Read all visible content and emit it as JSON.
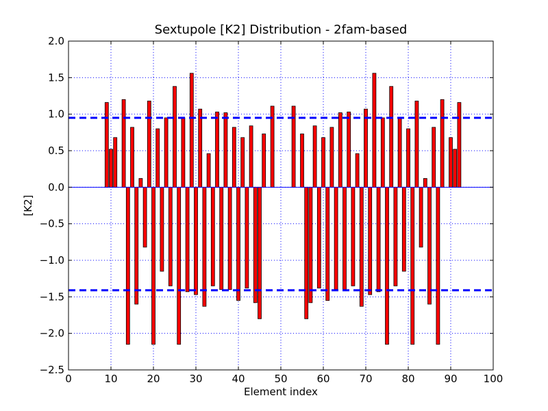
{
  "chart_data": {
    "type": "bar",
    "title": "Sextupole [K2] Distribution - 2fam-based",
    "xlabel": "Element index",
    "ylabel": "[K2]",
    "xlim": [
      0,
      100
    ],
    "ylim": [
      -2.5,
      2.0
    ],
    "xticks": [
      0,
      10,
      20,
      30,
      40,
      50,
      60,
      70,
      80,
      90,
      100
    ],
    "xtick_labels": [
      "0",
      "10",
      "20",
      "30",
      "40",
      "50",
      "60",
      "70",
      "80",
      "90",
      "100"
    ],
    "yticks": [
      2.0,
      1.5,
      1.0,
      0.5,
      0.0,
      -0.5,
      -1.0,
      -1.5,
      -2.0,
      -2.5
    ],
    "ytick_labels": [
      "2.0",
      "1.5",
      "1.0",
      "0.5",
      "0.0",
      "−0.5",
      "−1.0",
      "−1.5",
      "−2.0",
      "−2.5"
    ],
    "grid": true,
    "bar_width": 0.8,
    "bar_color": "#ff0000",
    "bar_edge_color": "#000000",
    "zero_line_color": "#0000ff",
    "reference_lines": [
      {
        "y": 0.95,
        "color": "#0000ff",
        "style": "dashed"
      },
      {
        "y": -1.41,
        "color": "#0000ff",
        "style": "dashed"
      }
    ],
    "bars": [
      {
        "x": 9,
        "value": 1.16
      },
      {
        "x": 10,
        "value": 0.52
      },
      {
        "x": 11,
        "value": 0.68
      },
      {
        "x": 13,
        "value": 1.2
      },
      {
        "x": 14,
        "value": -2.15
      },
      {
        "x": 15,
        "value": 0.82
      },
      {
        "x": 16,
        "value": -1.6
      },
      {
        "x": 17,
        "value": 0.12
      },
      {
        "x": 18,
        "value": -0.82
      },
      {
        "x": 19,
        "value": 1.18
      },
      {
        "x": 20,
        "value": -2.15
      },
      {
        "x": 21,
        "value": 0.8
      },
      {
        "x": 22,
        "value": -1.15
      },
      {
        "x": 23,
        "value": 0.95
      },
      {
        "x": 24,
        "value": -1.35
      },
      {
        "x": 25,
        "value": 1.38
      },
      {
        "x": 26,
        "value": -2.15
      },
      {
        "x": 27,
        "value": 0.95
      },
      {
        "x": 28,
        "value": -1.43
      },
      {
        "x": 29,
        "value": 1.56
      },
      {
        "x": 30,
        "value": -1.47
      },
      {
        "x": 31,
        "value": 1.07
      },
      {
        "x": 32,
        "value": -1.63
      },
      {
        "x": 33,
        "value": 0.46
      },
      {
        "x": 34,
        "value": -1.35
      },
      {
        "x": 35,
        "value": 1.03
      },
      {
        "x": 36,
        "value": -1.4
      },
      {
        "x": 37,
        "value": 1.02
      },
      {
        "x": 38,
        "value": -1.4
      },
      {
        "x": 39,
        "value": 0.82
      },
      {
        "x": 40,
        "value": -1.55
      },
      {
        "x": 41,
        "value": 0.68
      },
      {
        "x": 42,
        "value": -1.38
      },
      {
        "x": 43,
        "value": 0.84
      },
      {
        "x": 44,
        "value": -1.58
      },
      {
        "x": 45,
        "value": -1.8
      },
      {
        "x": 46,
        "value": 0.73
      },
      {
        "x": 48,
        "value": 1.11
      },
      {
        "x": 53,
        "value": 1.11
      },
      {
        "x": 55,
        "value": 0.73
      },
      {
        "x": 56,
        "value": -1.8
      },
      {
        "x": 57,
        "value": -1.58
      },
      {
        "x": 58,
        "value": 0.84
      },
      {
        "x": 59,
        "value": -1.38
      },
      {
        "x": 60,
        "value": 0.68
      },
      {
        "x": 61,
        "value": -1.55
      },
      {
        "x": 62,
        "value": 0.82
      },
      {
        "x": 63,
        "value": -1.4
      },
      {
        "x": 64,
        "value": 1.02
      },
      {
        "x": 65,
        "value": -1.4
      },
      {
        "x": 66,
        "value": 1.03
      },
      {
        "x": 67,
        "value": -1.35
      },
      {
        "x": 68,
        "value": 0.46
      },
      {
        "x": 69,
        "value": -1.63
      },
      {
        "x": 70,
        "value": 1.07
      },
      {
        "x": 71,
        "value": -1.47
      },
      {
        "x": 72,
        "value": 1.56
      },
      {
        "x": 73,
        "value": -1.43
      },
      {
        "x": 74,
        "value": 0.95
      },
      {
        "x": 75,
        "value": -2.15
      },
      {
        "x": 76,
        "value": 1.38
      },
      {
        "x": 77,
        "value": -1.35
      },
      {
        "x": 78,
        "value": 0.95
      },
      {
        "x": 79,
        "value": -1.15
      },
      {
        "x": 80,
        "value": 0.8
      },
      {
        "x": 81,
        "value": -2.15
      },
      {
        "x": 82,
        "value": 1.18
      },
      {
        "x": 83,
        "value": -0.82
      },
      {
        "x": 84,
        "value": 0.12
      },
      {
        "x": 85,
        "value": -1.6
      },
      {
        "x": 86,
        "value": 0.82
      },
      {
        "x": 87,
        "value": -2.15
      },
      {
        "x": 88,
        "value": 1.2
      },
      {
        "x": 90,
        "value": 0.68
      },
      {
        "x": 91,
        "value": 0.52
      },
      {
        "x": 92,
        "value": 1.16
      }
    ]
  }
}
